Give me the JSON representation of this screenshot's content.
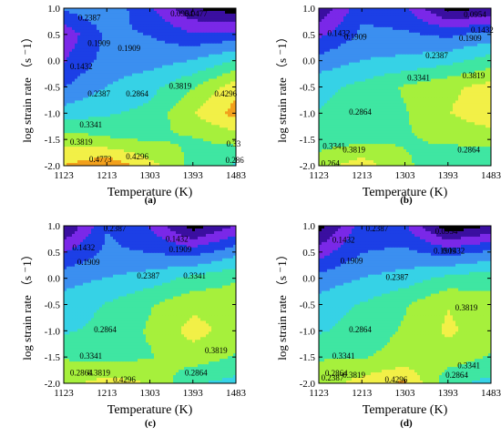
{
  "figure": {
    "panels": [
      "(a)",
      "(b)",
      "(c)",
      "(d)"
    ]
  },
  "chart_data": [
    {
      "type": "contour",
      "panel_label": "(a)",
      "xlabel": "Temperature (K)",
      "ylabel": "log strain rate （s ⁻1）",
      "x_ticks": [
        "1123",
        "1213",
        "1303",
        "1393",
        "1483"
      ],
      "y_ticks": [
        "1.0",
        "0.5",
        "0.0",
        "-0.5",
        "-1.0",
        "-1.5",
        "-2.0"
      ],
      "xlim": [
        1123,
        1483
      ],
      "ylim": [
        -2.0,
        1.0
      ],
      "x_values": [
        1123,
        1213,
        1303,
        1393,
        1483
      ],
      "y_values": [
        1.0,
        0.5,
        0.0,
        -0.5,
        -1.0,
        -1.5,
        -2.0
      ],
      "z_grid": [
        [
          0.2,
          0.23,
          0.15,
          0.05,
          0.02
        ],
        [
          0.11,
          0.2,
          0.19,
          0.15,
          0.16
        ],
        [
          0.14,
          0.21,
          0.22,
          0.24,
          0.29
        ],
        [
          0.19,
          0.24,
          0.27,
          0.33,
          0.41
        ],
        [
          0.26,
          0.28,
          0.3,
          0.38,
          0.45
        ],
        [
          0.36,
          0.34,
          0.33,
          0.33,
          0.35
        ],
        [
          0.43,
          0.47,
          0.4,
          0.32,
          0.28
        ]
      ],
      "contour_labels": [
        {
          "text": "0.2387",
          "x": 1153,
          "y": 0.82
        },
        {
          "text": "0.1909",
          "x": 1173,
          "y": 0.33
        },
        {
          "text": "0.1909",
          "x": 1236,
          "y": 0.24
        },
        {
          "text": "0.1432",
          "x": 1136,
          "y": -0.11
        },
        {
          "text": "0.2387",
          "x": 1173,
          "y": -0.63
        },
        {
          "text": "0.2864",
          "x": 1253,
          "y": -0.63
        },
        {
          "text": "0.3819",
          "x": 1343,
          "y": -0.48
        },
        {
          "text": "0.4296",
          "x": 1438,
          "y": -0.63
        },
        {
          "text": "0.3341",
          "x": 1156,
          "y": -1.22
        },
        {
          "text": "0.3819",
          "x": 1136,
          "y": -1.55
        },
        {
          "text": "0.4296",
          "x": 1253,
          "y": -1.83
        },
        {
          "text": "0.4773",
          "x": 1176,
          "y": -1.88
        },
        {
          "text": "0.33",
          "x": 1463,
          "y": -1.58
        },
        {
          "text": "0.286",
          "x": 1461,
          "y": -1.9
        },
        {
          "text": "0.0954",
          "x": 1346,
          "y": 0.9
        },
        {
          "text": "0.0477",
          "x": 1376,
          "y": 0.9
        }
      ]
    },
    {
      "type": "contour",
      "panel_label": "(b)",
      "xlabel": "Temperature (K)",
      "ylabel": "log strain rate （s ⁻1）",
      "x_ticks": [
        "1123",
        "1213",
        "1303",
        "1393",
        "1483"
      ],
      "y_ticks": [
        "1.0",
        "0.5",
        "0.0",
        "-0.5",
        "-1.0",
        "-1.5",
        "-2.0"
      ],
      "xlim": [
        1123,
        1483
      ],
      "ylim": [
        -2.0,
        1.0
      ],
      "x_values": [
        1123,
        1213,
        1303,
        1393,
        1483
      ],
      "y_values": [
        1.0,
        0.5,
        0.0,
        -0.5,
        -1.0,
        -1.5,
        -2.0
      ],
      "z_grid": [
        [
          0.05,
          0.18,
          0.15,
          0.03,
          0.05
        ],
        [
          0.13,
          0.2,
          0.2,
          0.18,
          0.21
        ],
        [
          0.21,
          0.24,
          0.25,
          0.27,
          0.31
        ],
        [
          0.27,
          0.3,
          0.34,
          0.37,
          0.4
        ],
        [
          0.29,
          0.31,
          0.33,
          0.38,
          0.42
        ],
        [
          0.31,
          0.32,
          0.33,
          0.34,
          0.35
        ],
        [
          0.36,
          0.41,
          0.34,
          0.31,
          0.29
        ]
      ],
      "contour_labels": [
        {
          "text": "0.1432",
          "x": 1141,
          "y": 0.52
        },
        {
          "text": "0.1909",
          "x": 1176,
          "y": 0.45
        },
        {
          "text": "0.2387",
          "x": 1346,
          "y": 0.1
        },
        {
          "text": "0.1909",
          "x": 1416,
          "y": 0.43
        },
        {
          "text": "0.1432",
          "x": 1441,
          "y": 0.58
        },
        {
          "text": "0.0954",
          "x": 1426,
          "y": 0.88
        },
        {
          "text": "0.3341",
          "x": 1308,
          "y": -0.33
        },
        {
          "text": "0.3819",
          "x": 1423,
          "y": -0.28
        },
        {
          "text": "0.2864",
          "x": 1186,
          "y": -0.98
        },
        {
          "text": "0.3341",
          "x": 1131,
          "y": -1.63
        },
        {
          "text": "0.3819",
          "x": 1173,
          "y": -1.7
        },
        {
          "text": "0.2864",
          "x": 1413,
          "y": -1.7
        },
        {
          "text": "0.264",
          "x": 1128,
          "y": -1.96
        }
      ]
    },
    {
      "type": "contour",
      "panel_label": "(c)",
      "xlabel": "Temperature (K)",
      "ylabel": "log strain rate （s ⁻1）",
      "x_ticks": [
        "1123",
        "1213",
        "1303",
        "1393",
        "1483"
      ],
      "y_ticks": [
        "1.0",
        "0.5",
        "0.0",
        "-0.5",
        "-1.0",
        "-1.5",
        "-2.0"
      ],
      "xlim": [
        1123,
        1483
      ],
      "ylim": [
        -2.0,
        1.0
      ],
      "x_values": [
        1123,
        1213,
        1303,
        1393,
        1483
      ],
      "y_values": [
        1.0,
        0.5,
        0.0,
        -0.5,
        -1.0,
        -1.5,
        -2.0
      ],
      "z_grid": [
        [
          0.04,
          0.19,
          0.14,
          0.02,
          0.1
        ],
        [
          0.14,
          0.2,
          0.19,
          0.17,
          0.22
        ],
        [
          0.22,
          0.24,
          0.26,
          0.3,
          0.33
        ],
        [
          0.26,
          0.29,
          0.33,
          0.37,
          0.36
        ],
        [
          0.28,
          0.3,
          0.34,
          0.4,
          0.36
        ],
        [
          0.33,
          0.32,
          0.33,
          0.36,
          0.33
        ],
        [
          0.37,
          0.4,
          0.38,
          0.29,
          0.27
        ]
      ],
      "contour_labels": [
        {
          "text": "0.2387",
          "x": 1206,
          "y": 0.95
        },
        {
          "text": "0.1432",
          "x": 1141,
          "y": 0.58
        },
        {
          "text": "0.1909",
          "x": 1151,
          "y": 0.31
        },
        {
          "text": "0.1909",
          "x": 1343,
          "y": 0.55
        },
        {
          "text": "0.1432",
          "x": 1336,
          "y": 0.75
        },
        {
          "text": "0.2387",
          "x": 1276,
          "y": 0.05
        },
        {
          "text": "0.3341",
          "x": 1373,
          "y": 0.05
        },
        {
          "text": "0.2864",
          "x": 1186,
          "y": -0.98
        },
        {
          "text": "0.3819",
          "x": 1418,
          "y": -1.38
        },
        {
          "text": "0.3341",
          "x": 1156,
          "y": -1.48
        },
        {
          "text": "0.3819",
          "x": 1173,
          "y": -1.8
        },
        {
          "text": "0.2864",
          "x": 1136,
          "y": -1.8
        },
        {
          "text": "0.4296",
          "x": 1226,
          "y": -1.93
        },
        {
          "text": "0.2864",
          "x": 1376,
          "y": -1.8
        }
      ]
    },
    {
      "type": "contour",
      "panel_label": "(d)",
      "xlabel": "Temperature (K)",
      "ylabel": "log strain rate （s ⁻1）",
      "x_ticks": [
        "1123",
        "1213",
        "1303",
        "1393",
        "1483"
      ],
      "y_ticks": [
        "1.0",
        "0.5",
        "0.0",
        "-0.5",
        "-1.0",
        "-1.5",
        "-2.0"
      ],
      "xlim": [
        1123,
        1483
      ],
      "ylim": [
        -2.0,
        1.0
      ],
      "x_values": [
        1123,
        1213,
        1303,
        1393,
        1483
      ],
      "y_values": [
        1.0,
        0.5,
        0.0,
        -0.5,
        -1.0,
        -1.5,
        -2.0
      ],
      "z_grid": [
        [
          0.02,
          0.17,
          0.15,
          0.01,
          0.05
        ],
        [
          0.12,
          0.19,
          0.2,
          0.17,
          0.2
        ],
        [
          0.21,
          0.24,
          0.26,
          0.3,
          0.32
        ],
        [
          0.26,
          0.29,
          0.33,
          0.38,
          0.35
        ],
        [
          0.28,
          0.31,
          0.34,
          0.39,
          0.36
        ],
        [
          0.33,
          0.33,
          0.35,
          0.36,
          0.33
        ],
        [
          0.36,
          0.4,
          0.44,
          0.3,
          0.27
        ]
      ],
      "contour_labels": [
        {
          "text": "0.1432",
          "x": 1151,
          "y": 0.73
        },
        {
          "text": "0.2387",
          "x": 1221,
          "y": 0.95
        },
        {
          "text": "0.1909",
          "x": 1168,
          "y": 0.33
        },
        {
          "text": "0.1909",
          "x": 1363,
          "y": 0.52
        },
        {
          "text": "0.1432",
          "x": 1381,
          "y": 0.52
        },
        {
          "text": "0.0954",
          "x": 1366,
          "y": 0.9
        },
        {
          "text": "0.2387",
          "x": 1263,
          "y": 0.02
        },
        {
          "text": "0.3819",
          "x": 1408,
          "y": -0.56
        },
        {
          "text": "0.2864",
          "x": 1186,
          "y": -0.98
        },
        {
          "text": "0.3341",
          "x": 1151,
          "y": -1.48
        },
        {
          "text": "0.3341",
          "x": 1413,
          "y": -1.66
        },
        {
          "text": "0.2864",
          "x": 1136,
          "y": -1.81
        },
        {
          "text": "0.2387",
          "x": 1128,
          "y": -1.9
        },
        {
          "text": "0.3819",
          "x": 1173,
          "y": -1.84
        },
        {
          "text": "0.4296",
          "x": 1261,
          "y": -1.93
        },
        {
          "text": "0.2864",
          "x": 1388,
          "y": -1.84
        }
      ]
    }
  ],
  "colormap": {
    "levels": [
      0.0,
      0.0477,
      0.0954,
      0.1432,
      0.1909,
      0.2387,
      0.2864,
      0.3341,
      0.3819,
      0.4296,
      0.4773
    ],
    "colors": [
      "#000000",
      "#3a0fa0",
      "#7a28e8",
      "#1c3fe6",
      "#3b8ff0",
      "#36d2e6",
      "#3fe6a2",
      "#a6f03c",
      "#f2f047",
      "#f2a01c",
      "#e63a1a"
    ]
  }
}
